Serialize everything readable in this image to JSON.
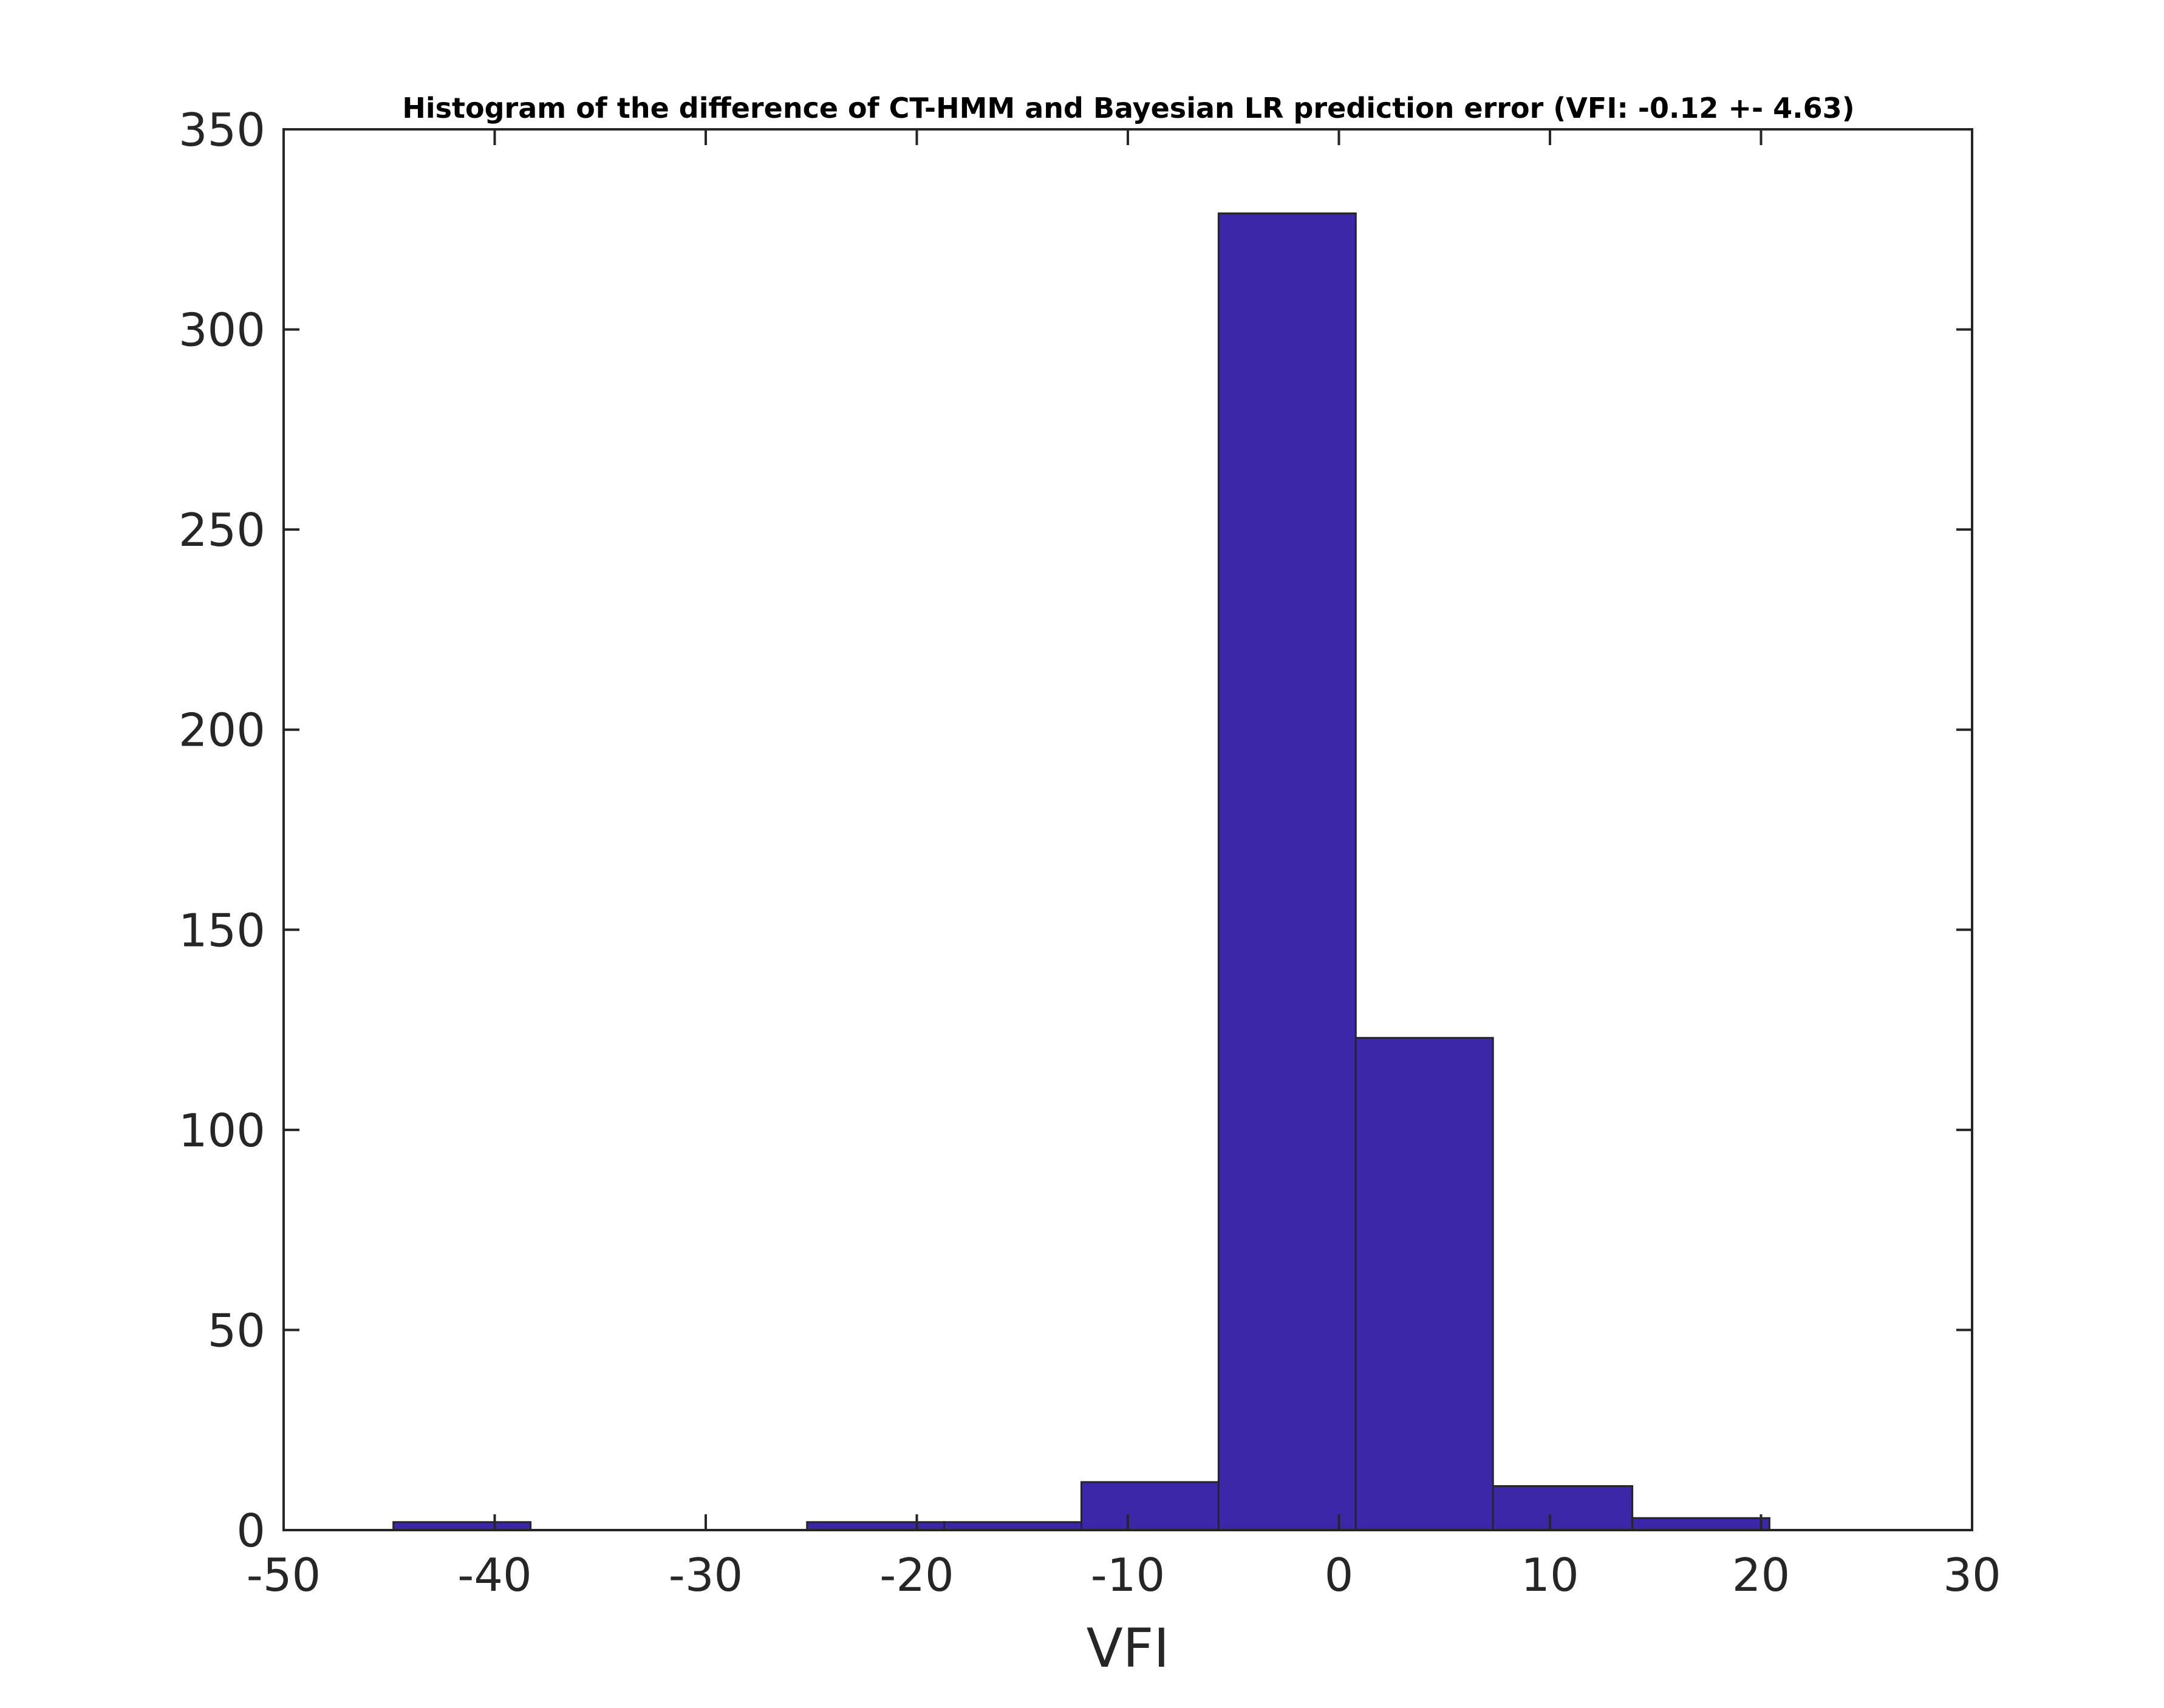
{
  "chart_data": {
    "type": "bar",
    "title": "Histogram of the difference of CT-HMM and Bayesian LR prediction error (VFI: -0.12 +- 4.63)",
    "xlabel": "VFI",
    "ylabel": "",
    "xlim": [
      -50,
      30
    ],
    "ylim": [
      0,
      350
    ],
    "xticks": [
      -50,
      -40,
      -30,
      -20,
      -10,
      0,
      10,
      20,
      30
    ],
    "yticks": [
      0,
      50,
      100,
      150,
      200,
      250,
      300,
      350
    ],
    "bin_edges": [
      -44.8,
      -38.3,
      -31.8,
      -25.2,
      -18.7,
      -12.2,
      -5.7,
      0.8,
      7.3,
      13.9,
      20.4,
      26.9
    ],
    "counts": [
      2,
      0,
      0,
      2,
      2,
      12,
      329,
      123,
      11,
      3,
      0
    ],
    "grid": false,
    "legend": "none",
    "colors": {
      "bar_fill": "#3c27a8",
      "bar_edge": "#262626",
      "axes": "#262626"
    }
  }
}
